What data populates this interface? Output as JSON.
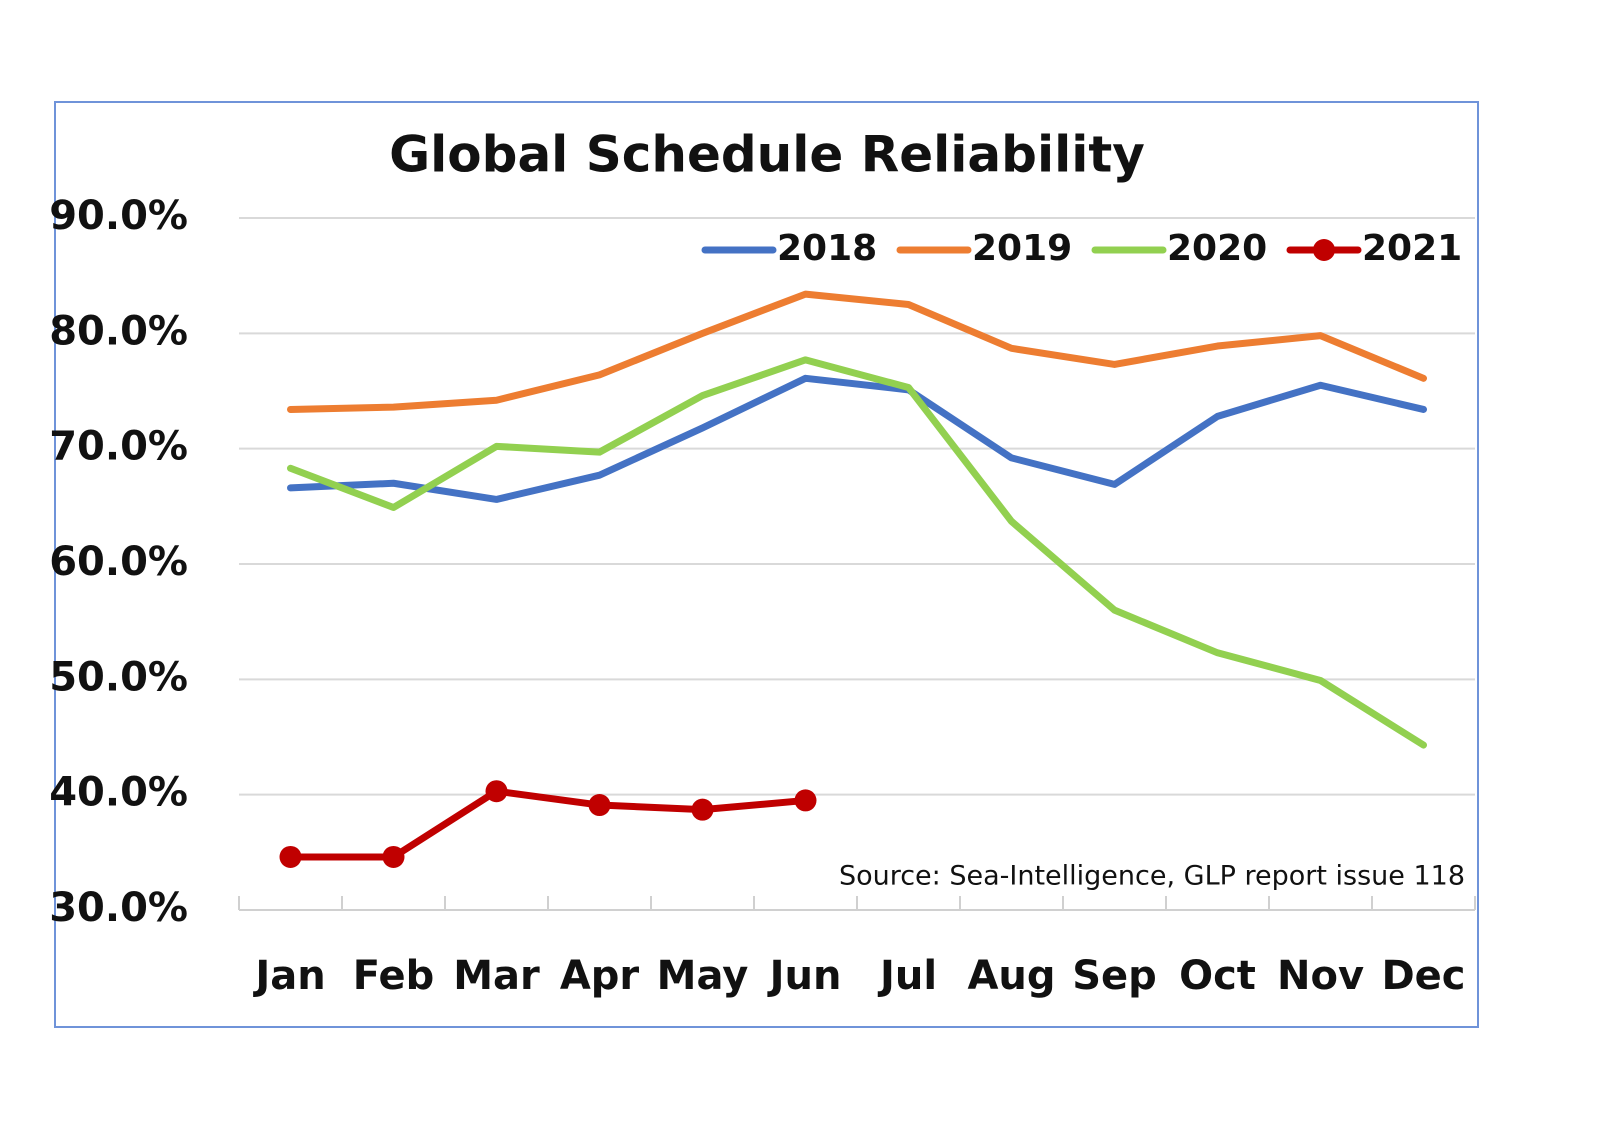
{
  "chart_data": {
    "type": "line",
    "title": "Global Schedule Reliability",
    "annotation": "Source: Sea-Intelligence, GLP report issue 118",
    "categories": [
      "Jan",
      "Feb",
      "Mar",
      "Apr",
      "May",
      "Jun",
      "Jul",
      "Aug",
      "Sep",
      "Oct",
      "Nov",
      "Dec"
    ],
    "series": [
      {
        "name": "2018",
        "color": "#4472c4",
        "values": [
          66.6,
          67.0,
          65.6,
          67.7,
          71.8,
          76.1,
          75.1,
          69.2,
          66.9,
          72.8,
          75.5,
          73.4
        ]
      },
      {
        "name": "2019",
        "color": "#ed7d31",
        "values": [
          73.4,
          73.6,
          74.2,
          76.4,
          80.0,
          83.4,
          82.5,
          78.7,
          77.3,
          78.9,
          79.8,
          76.1
        ]
      },
      {
        "name": "2020",
        "color": "#92d050",
        "values": [
          68.3,
          64.9,
          70.2,
          69.7,
          74.6,
          77.7,
          75.3,
          63.7,
          56.0,
          52.3,
          49.9,
          44.3
        ]
      },
      {
        "name": "2021",
        "color": "#c00000",
        "markers": true,
        "values": [
          34.6,
          34.6,
          40.3,
          39.1,
          38.7,
          39.5,
          null,
          null,
          null,
          null,
          null,
          null
        ]
      }
    ],
    "ylim": [
      30,
      90
    ],
    "yticks": [
      {
        "value": 30,
        "label": "30.0%"
      },
      {
        "value": 40,
        "label": "40.0%"
      },
      {
        "value": 50,
        "label": "50.0%"
      },
      {
        "value": 60,
        "label": "60.0%"
      },
      {
        "value": 70,
        "label": "70.0%"
      },
      {
        "value": 80,
        "label": "80.0%"
      },
      {
        "value": 90,
        "label": "90.0%"
      }
    ],
    "grid": true,
    "legend": "top-right"
  }
}
